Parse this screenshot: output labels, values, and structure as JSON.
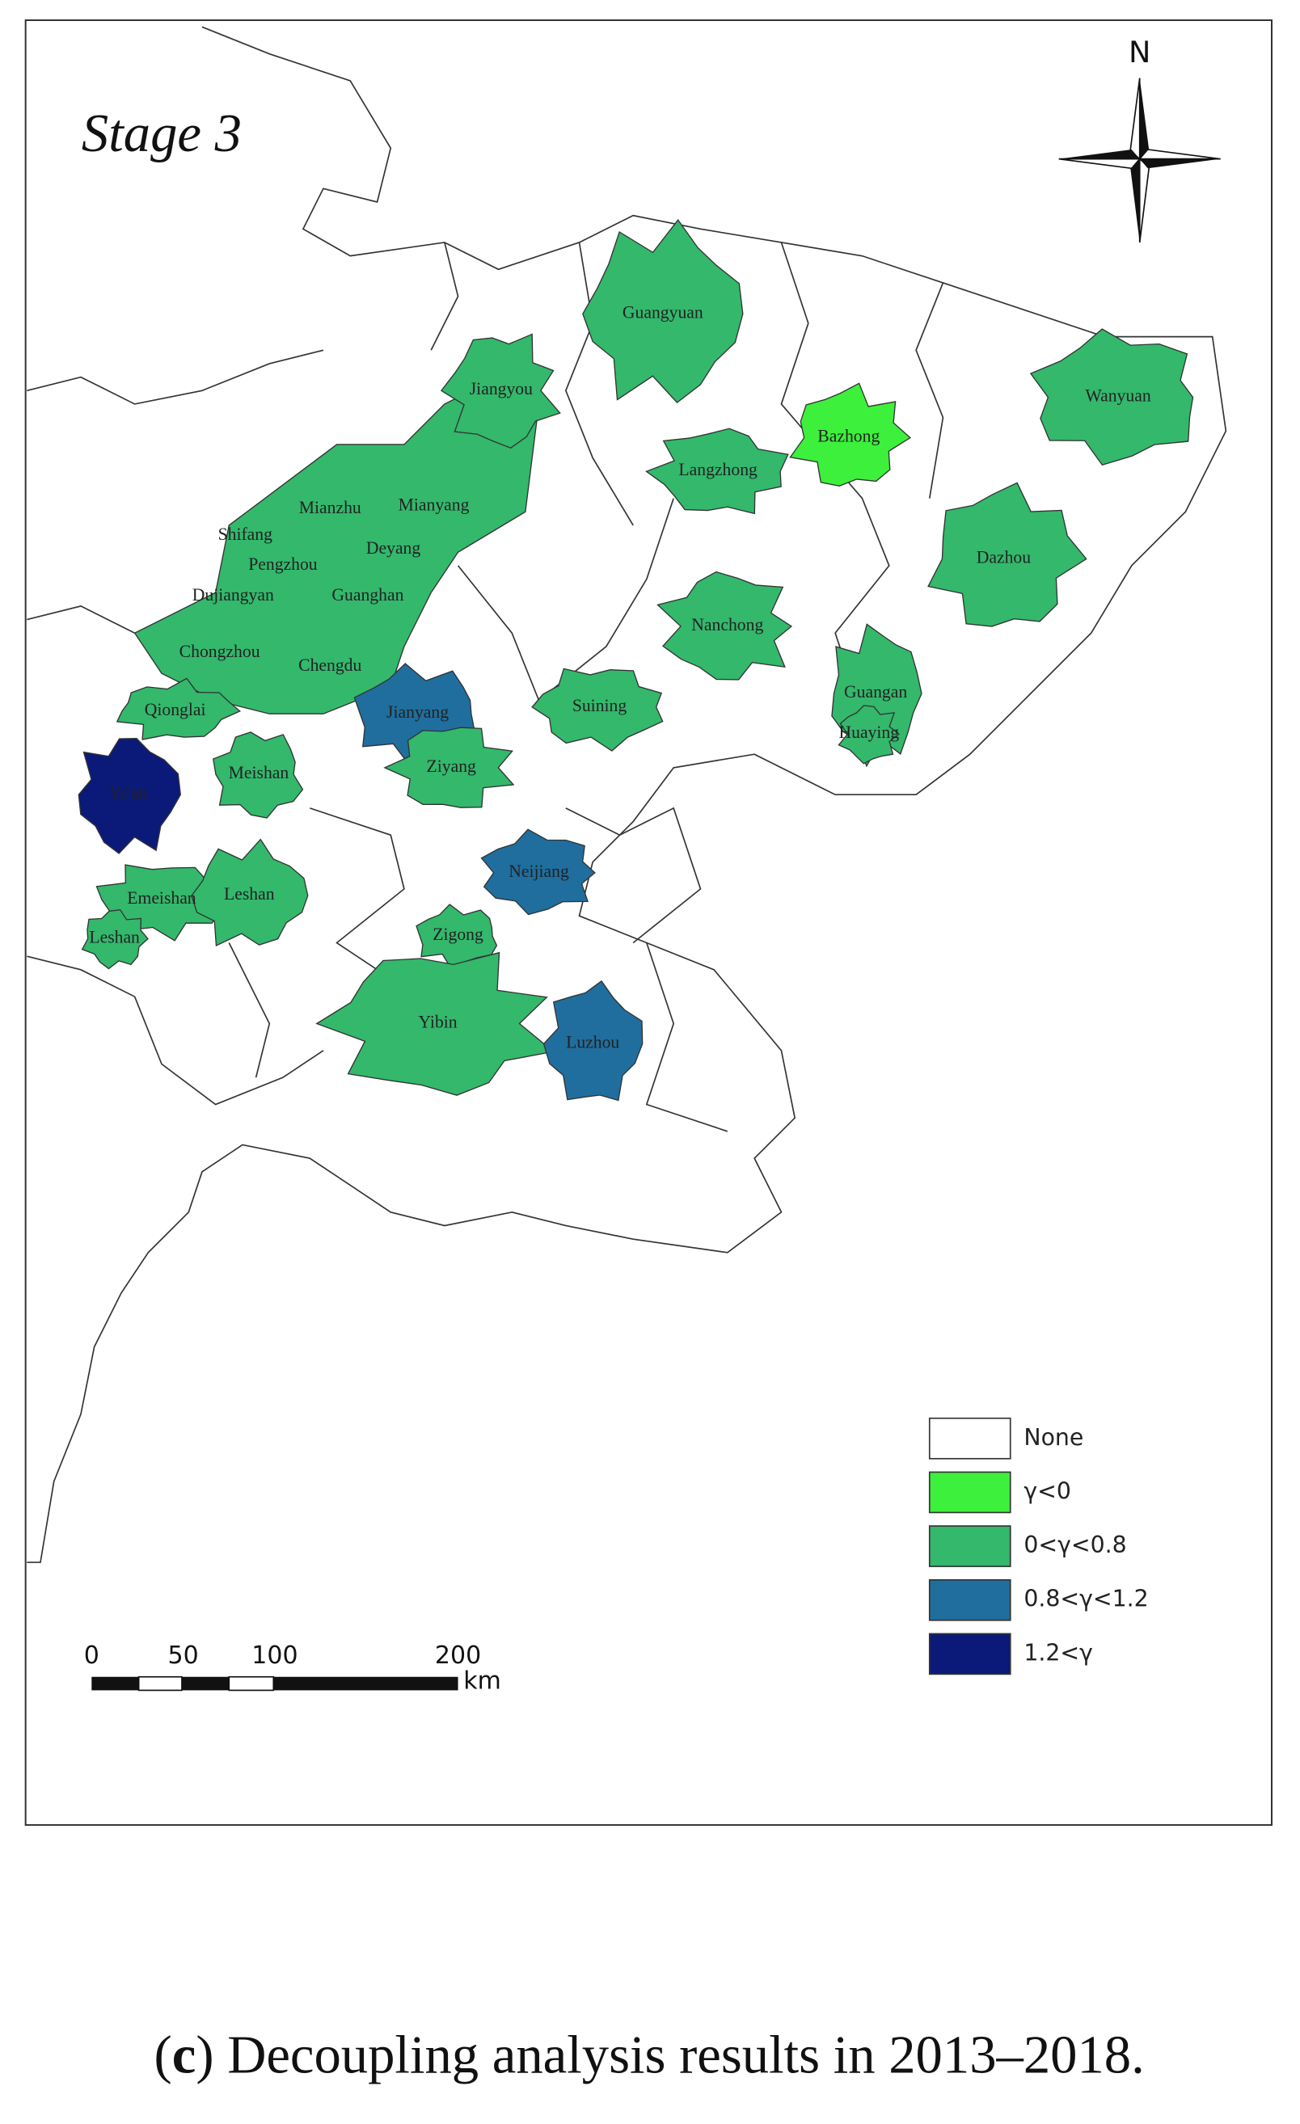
{
  "title": "Stage 3",
  "north": "N",
  "legend": [
    {
      "label": "None",
      "color": "#ffffff"
    },
    {
      "label": "γ<0",
      "color": "#3cf03c"
    },
    {
      "label": "0<γ<0.8",
      "color": "#33b86c"
    },
    {
      "label": "0.8<γ<1.2",
      "color": "#1f6e9e"
    },
    {
      "label": "1.2<γ",
      "color": "#0b1a78"
    }
  ],
  "regions": [
    {
      "name": "Guangyuan",
      "class": 2
    },
    {
      "name": "Bazhong",
      "class": 1
    },
    {
      "name": "Wanyuan",
      "class": 2
    },
    {
      "name": "Jiangyou",
      "class": 2
    },
    {
      "name": "Langzhong",
      "class": 2
    },
    {
      "name": "Mianzhu",
      "class": 2
    },
    {
      "name": "Mianyang",
      "class": 2
    },
    {
      "name": "Shifang",
      "class": 2
    },
    {
      "name": "Deyang",
      "class": 2
    },
    {
      "name": "Pengzhou",
      "class": 2
    },
    {
      "name": "Dujiangyan",
      "class": 2
    },
    {
      "name": "Guanghan",
      "class": 2
    },
    {
      "name": "Dazhou",
      "class": 2
    },
    {
      "name": "Nanchong",
      "class": 2
    },
    {
      "name": "Chongzhou",
      "class": 2
    },
    {
      "name": "Chengdu",
      "class": 2
    },
    {
      "name": "Guangan",
      "class": 2
    },
    {
      "name": "Jianyang",
      "class": 3
    },
    {
      "name": "Suining",
      "class": 2
    },
    {
      "name": "Qionglai",
      "class": 2
    },
    {
      "name": "Huaying",
      "class": 2
    },
    {
      "name": "Meishan",
      "class": 2
    },
    {
      "name": "Ziyang",
      "class": 2
    },
    {
      "name": "Ya'an",
      "class": 4
    },
    {
      "name": "Neijiang",
      "class": 3
    },
    {
      "name": "Emeishan",
      "class": 2
    },
    {
      "name": "Leshan",
      "class": 2
    },
    {
      "name": "Leshan",
      "class": 2
    },
    {
      "name": "Zigong",
      "class": 2
    },
    {
      "name": "Yibin",
      "class": 2
    },
    {
      "name": "Luzhou",
      "class": 3
    }
  ],
  "scale_bar": {
    "ticks": [
      0,
      50,
      100,
      200
    ],
    "unit": "km"
  },
  "caption": {
    "prefix": "(",
    "letter": "c",
    "text": ") Decoupling analysis results in 2013–2018."
  }
}
